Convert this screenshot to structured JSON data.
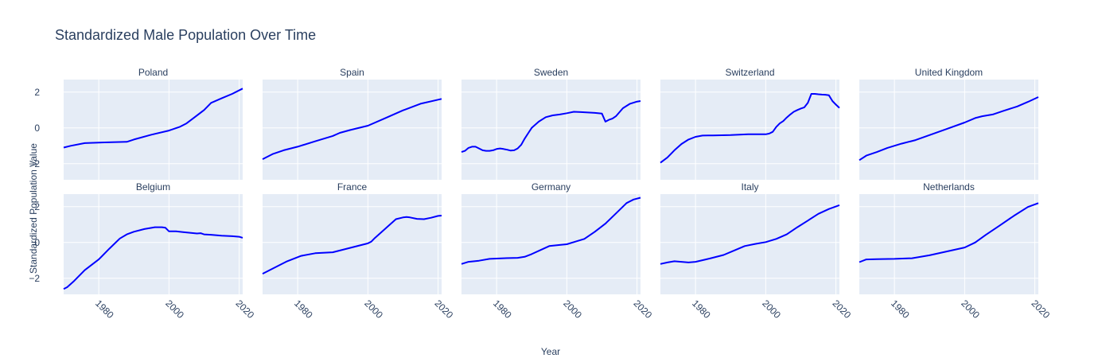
{
  "chart_data": {
    "type": "line",
    "title": "Standardized Male Population Over Time",
    "xlabel": "Year",
    "ylabel": "Standardized Population Value",
    "xlim": [
      1970,
      2021
    ],
    "ylim": [
      -2.9,
      2.7
    ],
    "xticks": [
      1980,
      2000,
      2020
    ],
    "yticks": [
      -2,
      0,
      2
    ],
    "grid": true,
    "line_color": "#0000ff",
    "panel_bg": "#e5ecf6",
    "panels": [
      {
        "name": "Poland",
        "x": [
          1970,
          1972,
          1976,
          1980,
          1988,
          1990,
          1995,
          2000,
          2003,
          2005,
          2007,
          2010,
          2012,
          2015,
          2018,
          2021
        ],
        "y": [
          -1.1,
          -1.0,
          -0.85,
          -0.82,
          -0.78,
          -0.65,
          -0.38,
          -0.15,
          0.05,
          0.25,
          0.55,
          1.0,
          1.4,
          1.65,
          1.9,
          2.2
        ]
      },
      {
        "name": "Spain",
        "x": [
          1970,
          1973,
          1976,
          1980,
          1985,
          1990,
          1992,
          1995,
          2000,
          2005,
          2010,
          2015,
          2021
        ],
        "y": [
          -1.75,
          -1.45,
          -1.25,
          -1.05,
          -0.75,
          -0.45,
          -0.28,
          -0.12,
          0.12,
          0.55,
          0.98,
          1.35,
          1.62
        ]
      },
      {
        "name": "Sweden",
        "x": [
          1970,
          1971,
          1972,
          1973,
          1974,
          1975,
          1976,
          1977,
          1978,
          1979,
          1980,
          1981,
          1982,
          1983,
          1984,
          1985,
          1986,
          1987,
          1988,
          1989,
          1990,
          1992,
          1994,
          1996,
          1998,
          2000,
          2002,
          2004,
          2006,
          2008,
          2010,
          2011,
          2012,
          2013,
          2014,
          2016,
          2018,
          2020,
          2021
        ],
        "y": [
          -1.35,
          -1.28,
          -1.12,
          -1.05,
          -1.05,
          -1.15,
          -1.25,
          -1.28,
          -1.28,
          -1.25,
          -1.18,
          -1.15,
          -1.18,
          -1.22,
          -1.27,
          -1.25,
          -1.15,
          -0.95,
          -0.6,
          -0.3,
          0.0,
          0.35,
          0.6,
          0.7,
          0.75,
          0.82,
          0.9,
          0.88,
          0.86,
          0.84,
          0.8,
          0.35,
          0.45,
          0.52,
          0.65,
          1.1,
          1.35,
          1.47,
          1.5
        ]
      },
      {
        "name": "Switzerland",
        "x": [
          1970,
          1972,
          1974,
          1976,
          1978,
          1980,
          1982,
          1985,
          1990,
          1995,
          2000,
          2001,
          2002,
          2003,
          2004,
          2005,
          2006,
          2007,
          2008,
          2009,
          2010,
          2011,
          2012,
          2013,
          2014,
          2015,
          2016,
          2017,
          2018,
          2019,
          2020,
          2021
        ],
        "y": [
          -1.95,
          -1.65,
          -1.25,
          -0.9,
          -0.65,
          -0.5,
          -0.43,
          -0.42,
          -0.4,
          -0.36,
          -0.36,
          -0.32,
          -0.22,
          0.05,
          0.25,
          0.38,
          0.58,
          0.75,
          0.9,
          1.0,
          1.08,
          1.15,
          1.4,
          1.9,
          1.9,
          1.88,
          1.86,
          1.85,
          1.82,
          1.5,
          1.3,
          1.12
        ]
      },
      {
        "name": "United Kingdom",
        "x": [
          1970,
          1972,
          1975,
          1978,
          1982,
          1986,
          1990,
          1995,
          2000,
          2003,
          2005,
          2008,
          2011,
          2015,
          2018,
          2021
        ],
        "y": [
          -1.8,
          -1.55,
          -1.35,
          -1.12,
          -0.88,
          -0.68,
          -0.4,
          -0.05,
          0.3,
          0.55,
          0.65,
          0.75,
          0.95,
          1.2,
          1.45,
          1.72
        ]
      },
      {
        "name": "Belgium",
        "x": [
          1970,
          1971,
          1973,
          1976,
          1980,
          1983,
          1986,
          1988,
          1990,
          1993,
          1996,
          1998,
          1999,
          2000,
          2002,
          2004,
          2006,
          2008,
          2009,
          2010,
          2012,
          2015,
          2018,
          2020,
          2021
        ],
        "y": [
          -2.6,
          -2.5,
          -2.15,
          -1.55,
          -0.95,
          -0.35,
          0.22,
          0.45,
          0.6,
          0.75,
          0.85,
          0.85,
          0.82,
          0.62,
          0.62,
          0.58,
          0.54,
          0.5,
          0.52,
          0.45,
          0.43,
          0.38,
          0.35,
          0.32,
          0.26
        ]
      },
      {
        "name": "France",
        "x": [
          1970,
          1973,
          1977,
          1981,
          1985,
          1990,
          1995,
          2000,
          2001,
          2002,
          2004,
          2006,
          2008,
          2010,
          2011,
          2012,
          2014,
          2016,
          2018,
          2020,
          2021
        ],
        "y": [
          -1.75,
          -1.45,
          -1.05,
          -0.75,
          -0.6,
          -0.55,
          -0.3,
          -0.05,
          0.05,
          0.25,
          0.6,
          0.95,
          1.3,
          1.4,
          1.42,
          1.4,
          1.32,
          1.3,
          1.38,
          1.48,
          1.5
        ]
      },
      {
        "name": "Germany",
        "x": [
          1970,
          1972,
          1975,
          1978,
          1982,
          1986,
          1988,
          1990,
          1993,
          1995,
          1998,
          2000,
          2002,
          2005,
          2008,
          2011,
          2014,
          2017,
          2019,
          2021
        ],
        "y": [
          -1.2,
          -1.08,
          -1.02,
          -0.92,
          -0.88,
          -0.86,
          -0.8,
          -0.65,
          -0.38,
          -0.2,
          -0.14,
          -0.1,
          0.02,
          0.2,
          0.6,
          1.05,
          1.62,
          2.2,
          2.4,
          2.5
        ]
      },
      {
        "name": "Italy",
        "x": [
          1970,
          1972,
          1974,
          1976,
          1978,
          1980,
          1984,
          1988,
          1991,
          1994,
          1997,
          2000,
          2003,
          2006,
          2009,
          2012,
          2015,
          2018,
          2021
        ],
        "y": [
          -1.2,
          -1.12,
          -1.05,
          -1.08,
          -1.12,
          -1.08,
          -0.9,
          -0.7,
          -0.45,
          -0.2,
          -0.08,
          0.02,
          0.2,
          0.45,
          0.85,
          1.22,
          1.6,
          1.87,
          2.08
        ]
      },
      {
        "name": "Netherlands",
        "x": [
          1970,
          1972,
          1975,
          1980,
          1985,
          1990,
          1995,
          2000,
          2003,
          2006,
          2010,
          2014,
          2018,
          2021
        ],
        "y": [
          -1.1,
          -0.95,
          -0.93,
          -0.92,
          -0.88,
          -0.72,
          -0.5,
          -0.28,
          0.0,
          0.42,
          0.95,
          1.48,
          1.98,
          2.2
        ]
      }
    ]
  }
}
